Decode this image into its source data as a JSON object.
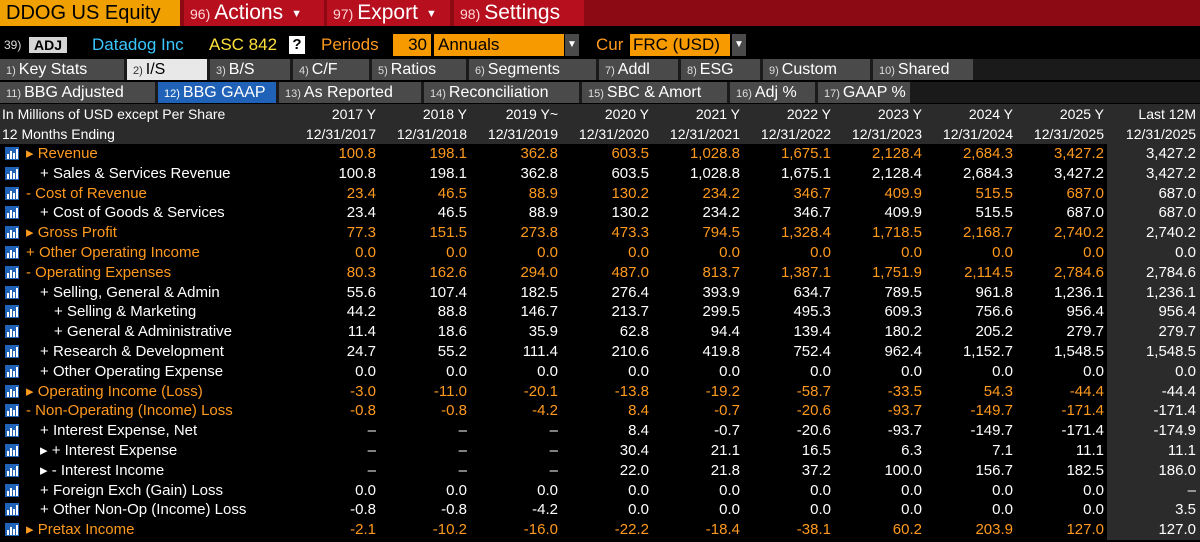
{
  "topbar": {
    "ticker": "DDOG US Equity",
    "actions": {
      "num": "96)",
      "label": "Actions"
    },
    "export": {
      "num": "97)",
      "label": "Export"
    },
    "settings": {
      "num": "98)",
      "label": "Settings"
    }
  },
  "row2": {
    "num": "39)",
    "adj": "ADJ",
    "company": "Datadog Inc",
    "standard": "ASC 842",
    "help": "?",
    "periods_label": "Periods",
    "periods_value": "30",
    "frequency": "Annuals",
    "cur_label": "Cur",
    "currency": "FRC (USD)"
  },
  "tabs": [
    {
      "num": "1)",
      "label": "Key Stats"
    },
    {
      "num": "2)",
      "label": "I/S"
    },
    {
      "num": "3)",
      "label": "B/S"
    },
    {
      "num": "4)",
      "label": "C/F"
    },
    {
      "num": "5)",
      "label": "Ratios"
    },
    {
      "num": "6)",
      "label": "Segments"
    },
    {
      "num": "7)",
      "label": "Addl"
    },
    {
      "num": "8)",
      "label": "ESG"
    },
    {
      "num": "9)",
      "label": "Custom"
    },
    {
      "num": "10)",
      "label": "Shared"
    }
  ],
  "subtabs": [
    {
      "num": "11)",
      "label": "BBG Adjusted"
    },
    {
      "num": "12)",
      "label": "BBG GAAP"
    },
    {
      "num": "13)",
      "label": "As Reported"
    },
    {
      "num": "14)",
      "label": "Reconciliation"
    },
    {
      "num": "15)",
      "label": "SBC & Amort"
    },
    {
      "num": "16)",
      "label": "Adj %"
    },
    {
      "num": "17)",
      "label": "GAAP %"
    }
  ],
  "header": {
    "units": "In Millions of USD except Per Share",
    "months": "12 Months Ending",
    "years": [
      "2017 Y",
      "2018 Y",
      "2019 Y~",
      "2020 Y",
      "2021 Y",
      "2022 Y",
      "2023 Y",
      "2024 Y",
      "2025 Y",
      "Last 12M"
    ],
    "dates": [
      "12/31/2017",
      "12/31/2018",
      "12/31/2019",
      "12/31/2020",
      "12/31/2021",
      "12/31/2022",
      "12/31/2023",
      "12/31/2024",
      "12/31/2025",
      "12/31/2025"
    ]
  },
  "colors": {
    "orange": "#ff9a1f",
    "white": "#ffffff",
    "tab_blue": "#1f62b8",
    "bar_red": "#b80f1e"
  },
  "rows": [
    {
      "prefix": "▸ ",
      "label": "Revenue",
      "color": "orange",
      "values": [
        "100.8",
        "198.1",
        "362.8",
        "603.5",
        "1,028.8",
        "1,675.1",
        "2,128.4",
        "2,684.3",
        "3,427.2",
        "3,427.2"
      ]
    },
    {
      "prefix": "+ ",
      "label": "Sales & Services Revenue",
      "color": "white",
      "values": [
        "100.8",
        "198.1",
        "362.8",
        "603.5",
        "1,028.8",
        "1,675.1",
        "2,128.4",
        "2,684.3",
        "3,427.2",
        "3,427.2"
      ]
    },
    {
      "prefix": "- ",
      "label": "Cost of Revenue",
      "color": "orange",
      "values": [
        "23.4",
        "46.5",
        "88.9",
        "130.2",
        "234.2",
        "346.7",
        "409.9",
        "515.5",
        "687.0",
        "687.0"
      ]
    },
    {
      "prefix": "+ ",
      "label": "Cost of Goods & Services",
      "color": "white",
      "values": [
        "23.4",
        "46.5",
        "88.9",
        "130.2",
        "234.2",
        "346.7",
        "409.9",
        "515.5",
        "687.0",
        "687.0"
      ]
    },
    {
      "prefix": "▸ ",
      "label": "Gross Profit",
      "color": "orange",
      "values": [
        "77.3",
        "151.5",
        "273.8",
        "473.3",
        "794.5",
        "1,328.4",
        "1,718.5",
        "2,168.7",
        "2,740.2",
        "2,740.2"
      ]
    },
    {
      "prefix": "+ ",
      "label": "Other Operating Income",
      "color": "orange",
      "values": [
        "0.0",
        "0.0",
        "0.0",
        "0.0",
        "0.0",
        "0.0",
        "0.0",
        "0.0",
        "0.0",
        "0.0"
      ]
    },
    {
      "prefix": "- ",
      "label": "Operating Expenses",
      "color": "orange",
      "values": [
        "80.3",
        "162.6",
        "294.0",
        "487.0",
        "813.7",
        "1,387.1",
        "1,751.9",
        "2,114.5",
        "2,784.6",
        "2,784.6"
      ]
    },
    {
      "prefix": "+ ",
      "label": "Selling, General & Admin",
      "color": "white",
      "values": [
        "55.6",
        "107.4",
        "182.5",
        "276.4",
        "393.9",
        "634.7",
        "789.5",
        "961.8",
        "1,236.1",
        "1,236.1"
      ]
    },
    {
      "prefix": "+ ",
      "label": "Selling & Marketing",
      "color": "white",
      "values": [
        "44.2",
        "88.8",
        "146.7",
        "213.7",
        "299.5",
        "495.3",
        "609.3",
        "756.6",
        "956.4",
        "956.4"
      ]
    },
    {
      "prefix": "+ ",
      "label": "General & Administrative",
      "color": "white",
      "values": [
        "11.4",
        "18.6",
        "35.9",
        "62.8",
        "94.4",
        "139.4",
        "180.2",
        "205.2",
        "279.7",
        "279.7"
      ]
    },
    {
      "prefix": "+ ",
      "label": "Research & Development",
      "color": "white",
      "values": [
        "24.7",
        "55.2",
        "111.4",
        "210.6",
        "419.8",
        "752.4",
        "962.4",
        "1,152.7",
        "1,548.5",
        "1,548.5"
      ]
    },
    {
      "prefix": "+ ",
      "label": "Other Operating Expense",
      "color": "white",
      "values": [
        "0.0",
        "0.0",
        "0.0",
        "0.0",
        "0.0",
        "0.0",
        "0.0",
        "0.0",
        "0.0",
        "0.0"
      ]
    },
    {
      "prefix": "▸ ",
      "label": "Operating Income (Loss)",
      "color": "orange",
      "values": [
        "-3.0",
        "-11.0",
        "-20.1",
        "-13.8",
        "-19.2",
        "-58.7",
        "-33.5",
        "54.3",
        "-44.4",
        "-44.4"
      ]
    },
    {
      "prefix": "- ",
      "label": "Non-Operating (Income) Loss",
      "color": "orange",
      "values": [
        "-0.8",
        "-0.8",
        "-4.2",
        "8.4",
        "-0.7",
        "-20.6",
        "-93.7",
        "-149.7",
        "-171.4",
        "-171.4"
      ]
    },
    {
      "prefix": "+ ",
      "label": "Interest Expense, Net",
      "color": "white",
      "values": [
        "–",
        "–",
        "–",
        "8.4",
        "-0.7",
        "-20.6",
        "-93.7",
        "-149.7",
        "-171.4",
        "-174.9"
      ]
    },
    {
      "prefix": "▸ + ",
      "label": "Interest Expense",
      "color": "white",
      "values": [
        "–",
        "–",
        "–",
        "30.4",
        "21.1",
        "16.5",
        "6.3",
        "7.1",
        "11.1",
        "11.1"
      ]
    },
    {
      "prefix": "▸ - ",
      "label": "Interest Income",
      "color": "white",
      "values": [
        "–",
        "–",
        "–",
        "22.0",
        "21.8",
        "37.2",
        "100.0",
        "156.7",
        "182.5",
        "186.0"
      ]
    },
    {
      "prefix": "+ ",
      "label": "Foreign Exch (Gain) Loss",
      "color": "white",
      "values": [
        "0.0",
        "0.0",
        "0.0",
        "0.0",
        "0.0",
        "0.0",
        "0.0",
        "0.0",
        "0.0",
        "–"
      ]
    },
    {
      "prefix": "+ ",
      "label": "Other Non-Op (Income) Loss",
      "color": "white",
      "values": [
        "-0.8",
        "-0.8",
        "-4.2",
        "0.0",
        "0.0",
        "0.0",
        "0.0",
        "0.0",
        "0.0",
        "3.5"
      ]
    },
    {
      "prefix": "▸ ",
      "label": "Pretax Income",
      "color": "orange",
      "values": [
        "-2.1",
        "-10.2",
        "-16.0",
        "-22.2",
        "-18.4",
        "-38.1",
        "60.2",
        "203.9",
        "127.0",
        "127.0"
      ]
    }
  ]
}
